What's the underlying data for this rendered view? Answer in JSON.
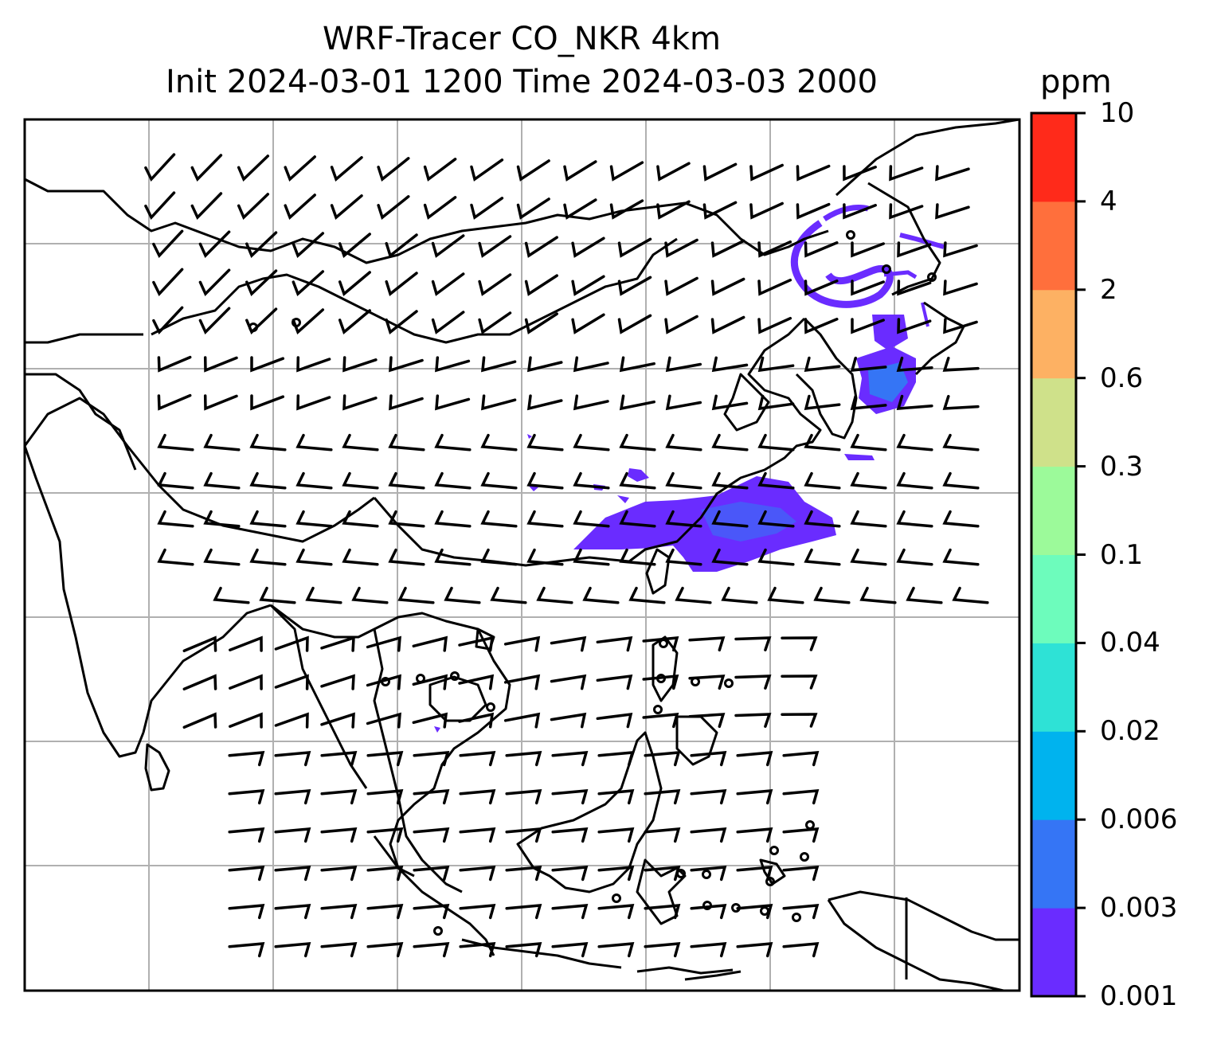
{
  "title": {
    "line1": "WRF-Tracer CO_NKR 4km",
    "line2": "Init 2024-03-01 1200 Time 2024-03-03 2000"
  },
  "colorbar": {
    "unit": "ppm",
    "levels": [
      "0.001",
      "0.003",
      "0.006",
      "0.02",
      "0.04",
      "0.1",
      "0.3",
      "0.6",
      "2",
      "4",
      "10"
    ],
    "colors": [
      "#6a2cff",
      "#3575f5",
      "#00b3ee",
      "#2ee2d6",
      "#6dfcbc",
      "#9cfa9a",
      "#cfe18a",
      "#fdb163",
      "#ff6f3c",
      "#ff2a1a"
    ]
  },
  "map": {
    "frame_color": "#000000",
    "grid_color": "#b0b0b0",
    "plume_color": "#6a2cff",
    "plume_highlight_color": "#3575f5"
  }
}
